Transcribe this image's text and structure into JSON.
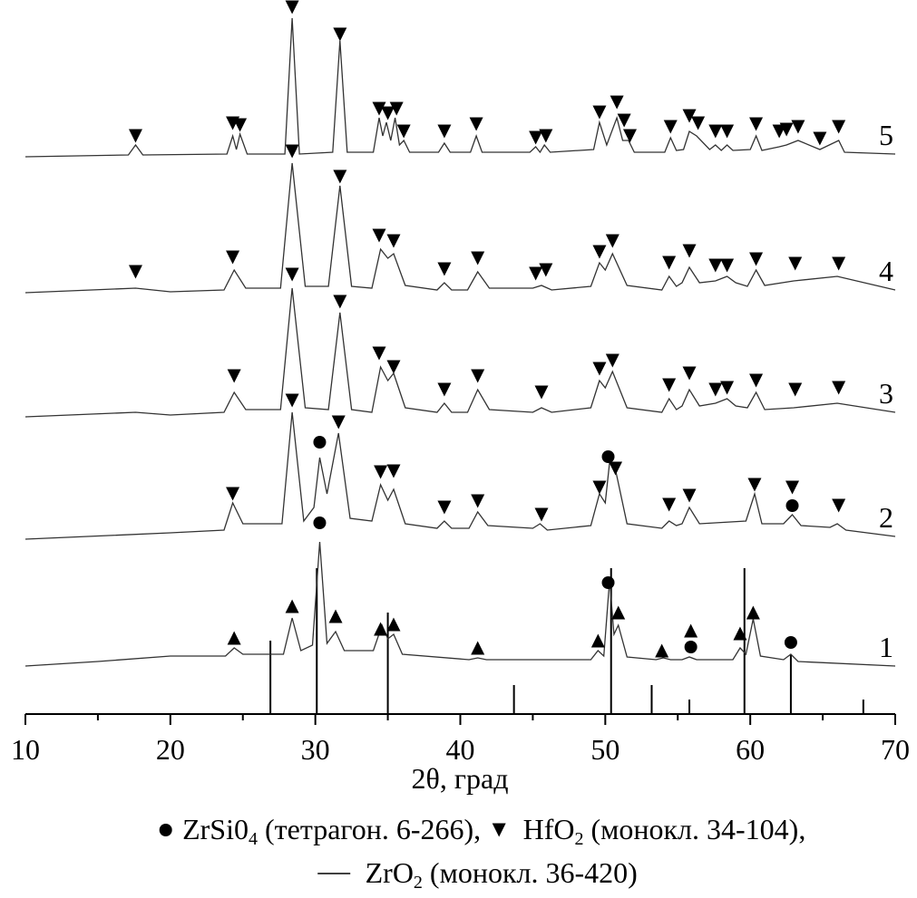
{
  "chart_data": {
    "type": "xrd",
    "x_label": "2θ, град",
    "xlim": [
      10,
      70
    ],
    "xticks": [
      10,
      20,
      30,
      40,
      50,
      60,
      70
    ],
    "xminorticks": [
      15,
      25,
      35,
      45,
      55,
      65
    ],
    "ylim": [
      0,
      788
    ],
    "series": [
      {
        "name": "1",
        "color": "#333",
        "x": [
          10,
          15,
          20,
          23.8,
          24.4,
          25,
          27.8,
          28.4,
          29,
          29.8,
          30.3,
          30.8,
          31.4,
          32,
          34,
          34.6,
          35,
          35.4,
          36,
          40.6,
          41.2,
          41.8,
          49,
          49.5,
          49.9,
          50.3,
          50.6,
          50.9,
          51.5,
          53.5,
          54,
          54.5,
          55.3,
          55.8,
          56.3,
          58.8,
          59.3,
          59.7,
          60.2,
          60.7,
          62.3,
          62.8,
          63.3,
          70
        ],
        "values": [
          53,
          58,
          64,
          64,
          73,
          66,
          66,
          106,
          70,
          76,
          190,
          78,
          91,
          70,
          70,
          98,
          83,
          88,
          66,
          60,
          62,
          60,
          60,
          70,
          64,
          148,
          88,
          98,
          63,
          60,
          62,
          60,
          60,
          63,
          60,
          60,
          73,
          66,
          105,
          64,
          60,
          66,
          58,
          53
        ],
        "markers": [
          {
            "symbol": "circle",
            "x": [
              30.3,
              50.2,
              55.9,
              62.8
            ],
            "y": [
              211,
              145,
              74,
              79
            ]
          },
          {
            "symbol": "up",
            "x": [
              24.4,
              28.4,
              31.4,
              34.5,
              35.4,
              41.2,
              49.5,
              50.9,
              53.9,
              55.9,
              59.3,
              60.2
            ],
            "y": [
              84,
              119,
              108,
              94,
              99,
              73,
              81,
              112,
              70,
              92,
              89,
              112
            ]
          }
        ]
      },
      {
        "name": "2",
        "color": "#333",
        "x": [
          10,
          20,
          23.7,
          24.3,
          25,
          27.7,
          28.4,
          29.2,
          29.9,
          30.3,
          30.8,
          31.6,
          32.4,
          33.9,
          34.5,
          35,
          35.4,
          36.2,
          38.4,
          38.9,
          39.4,
          40.6,
          41.2,
          41.9,
          45,
          45.5,
          46,
          49,
          49.6,
          50,
          50.3,
          50.7,
          51.5,
          53.9,
          54.4,
          54.9,
          55.3,
          55.8,
          56.5,
          59.7,
          60.3,
          60.8,
          62.3,
          62.9,
          63.5,
          65.5,
          66,
          66.6,
          70
        ],
        "values": [
          193,
          200,
          203,
          233,
          210,
          210,
          333,
          213,
          228,
          283,
          243,
          310,
          216,
          213,
          253,
          236,
          248,
          210,
          205,
          213,
          205,
          205,
          223,
          208,
          205,
          210,
          203,
          208,
          243,
          233,
          278,
          270,
          210,
          205,
          213,
          208,
          210,
          228,
          210,
          213,
          243,
          210,
          210,
          220,
          208,
          206,
          210,
          203,
          196
        ],
        "markers": [
          {
            "symbol": "down",
            "x": [
              24.3,
              28.4,
              31.6,
              34.5,
              35.4,
              38.9,
              41.2,
              45.6,
              49.6,
              50.7,
              54.4,
              55.8,
              60.3,
              62.9,
              66.1
            ],
            "y": [
              243,
              346,
              322,
              267,
              268,
              228,
              235,
              220,
              250,
              271,
              231,
              241,
              253,
              250,
              230
            ]
          },
          {
            "symbol": "circle",
            "x": [
              30.3,
              50.2,
              62.9
            ],
            "y": [
              300,
              284,
              230
            ]
          }
        ]
      },
      {
        "name": "3",
        "color": "#333",
        "x": [
          10,
          17.6,
          20,
          23.7,
          24.4,
          25.2,
          27.6,
          28.4,
          29.3,
          30.9,
          31.7,
          32.5,
          33.9,
          34.5,
          35,
          35.4,
          36.2,
          38.4,
          38.9,
          39.4,
          40.5,
          41.2,
          42,
          45,
          45.6,
          46.3,
          49,
          49.6,
          50,
          50.5,
          51.5,
          53.9,
          54.4,
          54.9,
          55.3,
          55.8,
          56.5,
          57.6,
          58.4,
          59,
          59.8,
          60.4,
          61,
          63,
          66,
          70
        ],
        "values": [
          328,
          333,
          330,
          333,
          355,
          336,
          336,
          470,
          338,
          336,
          443,
          336,
          333,
          383,
          368,
          376,
          338,
          333,
          343,
          333,
          333,
          358,
          336,
          333,
          338,
          333,
          338,
          368,
          360,
          378,
          338,
          333,
          348,
          336,
          340,
          358,
          340,
          343,
          348,
          340,
          338,
          355,
          336,
          338,
          343,
          333
        ],
        "markers": [
          {
            "symbol": "down",
            "x": [
              24.4,
              28.4,
              31.7,
              34.4,
              35.4,
              38.9,
              41.2,
              45.6,
              49.6,
              50.5,
              54.4,
              55.8,
              57.6,
              58.4,
              60.4,
              63.1,
              66.1
            ],
            "y": [
              373,
              485,
              455,
              398,
              383,
              358,
              373,
              355,
              381,
              390,
              363,
              376,
              358,
              360,
              368,
              358,
              360
            ]
          }
        ]
      },
      {
        "name": "4",
        "color": "#333",
        "x": [
          10,
          17.6,
          20,
          23.7,
          24.4,
          25.2,
          27.6,
          28.4,
          29.3,
          30.9,
          31.7,
          32.5,
          33.9,
          34.5,
          35,
          35.4,
          36.2,
          38.4,
          38.9,
          39.4,
          40.5,
          41.2,
          42,
          45,
          45.6,
          46.3,
          49,
          49.6,
          50,
          50.5,
          51.5,
          53.9,
          54.4,
          54.9,
          55.3,
          55.8,
          56.5,
          57.6,
          58.4,
          59,
          59.8,
          60.4,
          61,
          63,
          66,
          70
        ],
        "values": [
          465,
          470,
          466,
          468,
          490,
          470,
          470,
          608,
          472,
          472,
          583,
          472,
          470,
          513,
          503,
          508,
          473,
          468,
          476,
          468,
          468,
          488,
          470,
          470,
          473,
          468,
          472,
          498,
          490,
          508,
          473,
          468,
          483,
          472,
          476,
          493,
          476,
          478,
          483,
          476,
          472,
          490,
          473,
          478,
          483,
          468
        ],
        "markers": [
          {
            "symbol": "down",
            "x": [
              17.6,
              24.3,
              28.4,
              31.7,
              34.4,
              35.4,
              38.9,
              41.2,
              45.2,
              45.9,
              49.6,
              50.5,
              54.4,
              55.8,
              57.6,
              58.4,
              60.4,
              63.1,
              66.1
            ],
            "y": [
              488,
              504,
              621,
              593,
              528,
              522,
              491,
              503,
              486,
              490,
              510,
              522,
              498,
              511,
              495,
              495,
              502,
              497,
              497
            ]
          }
        ]
      },
      {
        "name": "5",
        "color": "#333",
        "x": [
          10,
          17.1,
          17.6,
          18.1,
          23.9,
          24.3,
          24.55,
          24.8,
          25.3,
          27.9,
          28.4,
          28.9,
          31.2,
          31.7,
          32.2,
          34,
          34.4,
          34.65,
          34.9,
          35.2,
          35.5,
          35.8,
          36.1,
          36.5,
          38.5,
          38.9,
          39.3,
          40.7,
          41.1,
          41.5,
          44.8,
          45.2,
          45.5,
          45.8,
          46.2,
          49.2,
          49.6,
          50.1,
          50.8,
          51.2,
          51.6,
          52,
          54.1,
          54.5,
          54.9,
          55.4,
          55.8,
          56.3,
          57.2,
          57.6,
          58,
          58.4,
          58.8,
          60,
          60.4,
          60.8,
          62,
          62.5,
          63.3,
          64.8,
          66.1,
          66.5,
          70
        ],
        "values": [
          615,
          617,
          628,
          617,
          618,
          638,
          623,
          640,
          618,
          618,
          768,
          618,
          620,
          743,
          620,
          620,
          658,
          638,
          653,
          633,
          658,
          628,
          633,
          620,
          620,
          630,
          620,
          620,
          638,
          620,
          620,
          626,
          620,
          628,
          620,
          623,
          653,
          628,
          658,
          633,
          633,
          620,
          620,
          636,
          622,
          623,
          643,
          638,
          623,
          628,
          622,
          628,
          622,
          623,
          638,
          622,
          626,
          628,
          633,
          623,
          633,
          620,
          618
        ],
        "markers": [
          {
            "symbol": "down",
            "x": [
              17.6,
              24.3,
              24.8,
              28.4,
              31.7,
              34.4,
              35.0,
              35.6,
              36.1,
              38.9,
              41.1,
              45.2,
              45.9,
              49.6,
              50.8,
              51.3,
              51.7,
              54.5,
              55.8,
              56.4,
              57.6,
              58.4,
              60.4,
              62.0,
              62.5,
              63.3,
              64.8,
              66.1
            ],
            "y": [
              638,
              652,
              650,
              780,
              750,
              668,
              663,
              668,
              643,
              643,
              651,
              636,
              638,
              664,
              675,
              655,
              638,
              648,
              660,
              652,
              643,
              643,
              651,
              643,
              645,
              648,
              635,
              648
            ]
          }
        ]
      }
    ],
    "sticks": {
      "x": [
        26.9,
        30.1,
        35.0,
        43.7,
        50.4,
        53.2,
        55.8,
        59.6,
        62.8,
        67.8
      ],
      "values": [
        81,
        161,
        112,
        32,
        161,
        32,
        16,
        161,
        66,
        16
      ]
    },
    "legend": [
      [
        {
          "symbol": "circle"
        },
        {
          "text": "ZrSi0"
        },
        {
          "sub": "4"
        },
        {
          "text": " (тетрагон. 6-266), "
        },
        {
          "symbol": "down"
        },
        {
          "text": " HfO"
        },
        {
          "sub": "2"
        },
        {
          "text": " (монокл. 34-104),"
        }
      ],
      [
        {
          "symbol": "dash"
        },
        {
          "text": " ZrO"
        },
        {
          "sub": "2"
        },
        {
          "text": " (монокл. 36-420)"
        }
      ]
    ]
  }
}
